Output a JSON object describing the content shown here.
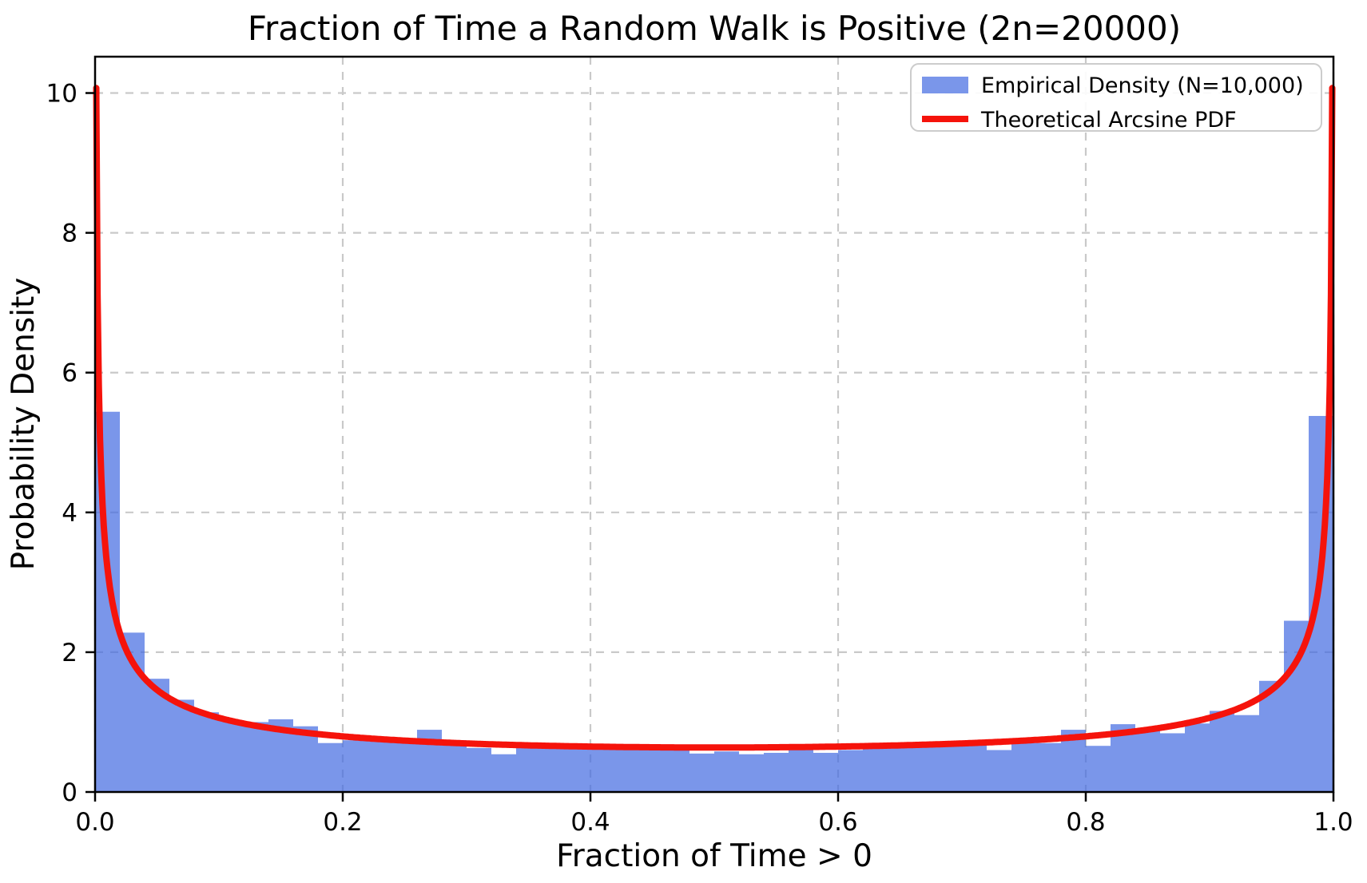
{
  "chart_data": {
    "type": "bar",
    "subtype": "histogram-with-theoretical-curve",
    "title": "Fraction of Time a Random Walk is Positive (2n=20000)",
    "xlabel": "Fraction of Time > 0",
    "ylabel": "Probability Density",
    "xlim": [
      0.0,
      1.0
    ],
    "ylim": [
      0,
      10.52
    ],
    "x_ticks": [
      0.0,
      0.2,
      0.4,
      0.6,
      0.8,
      1.0
    ],
    "x_tick_labels": [
      "0.0",
      "0.2",
      "0.4",
      "0.6",
      "0.8",
      "1.0"
    ],
    "y_ticks": [
      0,
      2,
      4,
      6,
      8,
      10
    ],
    "y_tick_labels": [
      "0",
      "2",
      "4",
      "6",
      "8",
      "10"
    ],
    "grid": true,
    "grid_style": "dashed",
    "grid_color": "#c9c9c9",
    "histogram": {
      "name": "Empirical Density (N=10,000)",
      "bin_start": 0.0,
      "bin_width": 0.02,
      "n_bins": 50,
      "color": "#4169e1",
      "fill_opacity": 0.7,
      "values": [
        5.44,
        2.28,
        1.62,
        1.32,
        1.14,
        1.02,
        1.0,
        1.04,
        0.94,
        0.7,
        0.74,
        0.73,
        0.71,
        0.89,
        0.74,
        0.63,
        0.54,
        0.64,
        0.67,
        0.65,
        0.68,
        0.64,
        0.68,
        0.63,
        0.55,
        0.58,
        0.54,
        0.56,
        0.68,
        0.56,
        0.6,
        0.63,
        0.7,
        0.65,
        0.7,
        0.7,
        0.6,
        0.7,
        0.7,
        0.89,
        0.66,
        0.97,
        0.88,
        0.84,
        0.98,
        1.16,
        1.1,
        1.59,
        2.45,
        5.38
      ]
    },
    "curve": {
      "name": "Theoretical Arcsine PDF",
      "color": "#f5130b",
      "formula": "1 / (pi * sqrt(x * (1 - x)))",
      "x_min": 0.001,
      "x_max": 0.999,
      "peak_value_shown": 10.07,
      "min_value_shown": 0.637
    },
    "legend": {
      "position": "upper right",
      "entries": [
        {
          "label": "Empirical Density (N=10,000)",
          "marker": "patch",
          "color": "#4169e1",
          "opacity": 0.7
        },
        {
          "label": "Theoretical Arcsine PDF",
          "marker": "line",
          "color": "#f5130b"
        }
      ]
    }
  }
}
